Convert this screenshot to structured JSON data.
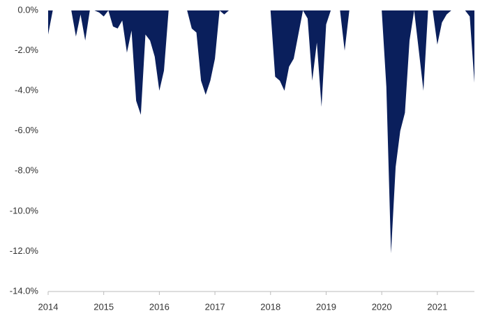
{
  "chart_data": {
    "type": "area",
    "color": "#0a1f5c",
    "x": [
      2014,
      2014.083,
      2014.167,
      2014.25,
      2014.333,
      2014.417,
      2014.5,
      2014.583,
      2014.667,
      2014.75,
      2014.833,
      2014.917,
      2015,
      2015.083,
      2015.167,
      2015.25,
      2015.333,
      2015.417,
      2015.5,
      2015.583,
      2015.667,
      2015.75,
      2015.833,
      2015.917,
      2016,
      2016.083,
      2016.167,
      2016.25,
      2016.333,
      2016.417,
      2016.5,
      2016.583,
      2016.667,
      2016.75,
      2016.833,
      2016.917,
      2017,
      2017.083,
      2017.167,
      2017.25,
      2017.333,
      2017.417,
      2017.5,
      2017.583,
      2017.667,
      2017.75,
      2017.833,
      2017.917,
      2018,
      2018.083,
      2018.167,
      2018.25,
      2018.333,
      2018.417,
      2018.5,
      2018.583,
      2018.667,
      2018.75,
      2018.833,
      2018.917,
      2019,
      2019.083,
      2019.167,
      2019.25,
      2019.333,
      2019.417,
      2019.5,
      2019.583,
      2019.667,
      2019.75,
      2019.833,
      2019.917,
      2020,
      2020.083,
      2020.167,
      2020.25,
      2020.333,
      2020.417,
      2020.5,
      2020.583,
      2020.667,
      2020.75,
      2020.833,
      2020.917,
      2021,
      2021.083,
      2021.167,
      2021.25,
      2021.333,
      2021.417,
      2021.5,
      2021.583,
      2021.667
    ],
    "values": [
      -1.2,
      0,
      0,
      0,
      0,
      0,
      -1.3,
      -0.2,
      -1.5,
      0,
      0,
      -0.1,
      -0.3,
      0,
      -0.8,
      -0.9,
      -0.5,
      -2.1,
      -1.0,
      -4.5,
      -5.2,
      -1.2,
      -1.5,
      -2.3,
      -4.0,
      -3.0,
      0,
      0,
      0,
      0,
      0,
      -0.9,
      -1.1,
      -3.5,
      -4.2,
      -3.5,
      -2.4,
      0,
      -0.2,
      0,
      0,
      0,
      0,
      0,
      0,
      0,
      0,
      0,
      0,
      -3.3,
      -3.5,
      -4.0,
      -2.8,
      -2.4,
      -1.2,
      0,
      -0.4,
      -3.5,
      -1.6,
      -4.8,
      -0.7,
      0,
      0,
      0,
      -2.0,
      0,
      0,
      0,
      0,
      0,
      0,
      0,
      0,
      -3.8,
      -12.1,
      -7.8,
      -6.0,
      -5.1,
      -1.5,
      0,
      -2.0,
      -4.0,
      0,
      0,
      -1.7,
      -0.6,
      -0.2,
      0,
      0,
      0,
      0,
      -0.3,
      -3.6
    ],
    "xlim": [
      2014,
      2021.667
    ],
    "xticks": [
      2014,
      2015,
      2016,
      2017,
      2018,
      2019,
      2020,
      2021
    ],
    "ylim": [
      -14,
      0
    ],
    "yticks": [
      {
        "value": 0,
        "label": "0.0%"
      },
      {
        "value": -2,
        "label": "-2.0%"
      },
      {
        "value": -4,
        "label": "-4.0%"
      },
      {
        "value": -6,
        "label": "-6.0%"
      },
      {
        "value": -8,
        "label": "-8.0%"
      },
      {
        "value": -10,
        "label": "-10.0%"
      },
      {
        "value": -12,
        "label": "-12.0%"
      },
      {
        "value": -14,
        "label": "-14.0%"
      }
    ]
  }
}
